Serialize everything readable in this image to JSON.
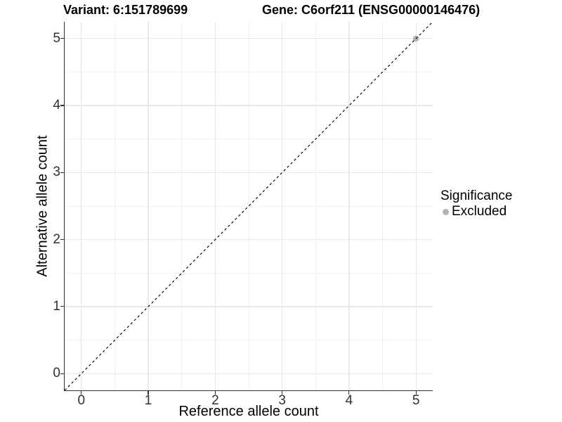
{
  "chart_data": {
    "type": "scatter",
    "title_variant": "Variant: 6:151789699",
    "title_gene": "Gene: C6orf211 (ENSG00000146476)",
    "xlabel": "Reference allele count",
    "ylabel": "Alternative allele count",
    "xlim": [
      -0.25,
      5.25
    ],
    "ylim": [
      -0.25,
      5.25
    ],
    "x_ticks": [
      0,
      1,
      2,
      3,
      4,
      5
    ],
    "y_ticks": [
      0,
      1,
      2,
      3,
      4,
      5
    ],
    "x_minor_ticks": [
      0.5,
      1.5,
      2.5,
      3.5,
      4.5
    ],
    "y_minor_ticks": [
      0.5,
      1.5,
      2.5,
      3.5,
      4.5
    ],
    "grid": "major+minor",
    "points": [
      {
        "x": 5,
        "y": 5,
        "series": "Excluded"
      }
    ],
    "identity_line": {
      "slope": 1,
      "intercept": 0,
      "style": "dashed",
      "color": "#000000"
    },
    "legend": {
      "title": "Significance",
      "position": "right",
      "entries": [
        {
          "label": "Excluded",
          "color": "#b4b4b4",
          "marker": "circle"
        }
      ]
    },
    "colors": {
      "background": "#ffffff",
      "grid_major": "#e8e8e8",
      "grid_minor": "#f0f0f0",
      "axis_line": "#2f2f2f",
      "tick_label": "#303030"
    }
  }
}
